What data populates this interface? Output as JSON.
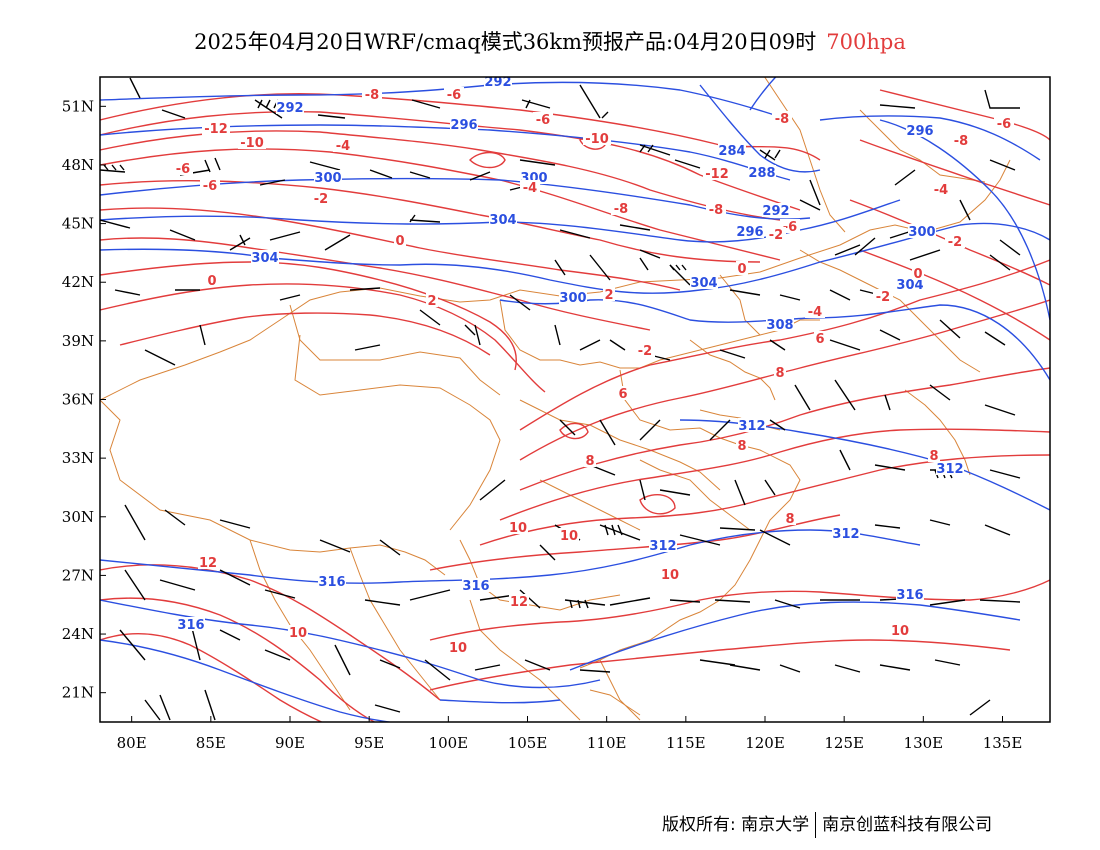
{
  "header": {
    "title": "2025年04月20日WRF/cmaq模式36km预报产品:04月20日09时",
    "level": "700hpa"
  },
  "colors": {
    "temperature": "#e23c3c",
    "height": "#2b4fe0",
    "border": "#d9853a",
    "wind": "#000000",
    "level_label": "#e23c3c"
  },
  "map": {
    "lon_range": [
      78,
      138
    ],
    "lat_range": [
      19.5,
      52.5
    ],
    "lon_ticks": [
      "80E",
      "85E",
      "90E",
      "95E",
      "100E",
      "105E",
      "110E",
      "115E",
      "120E",
      "125E",
      "130E",
      "135E"
    ],
    "lat_ticks": [
      "51N",
      "48N",
      "45N",
      "42N",
      "39N",
      "36N",
      "33N",
      "30N",
      "27N",
      "24N",
      "21N"
    ],
    "height_contours": {
      "name": "geopotential height (dagpm)",
      "labels": [
        "292",
        "292",
        "296",
        "284",
        "288",
        "300",
        "300",
        "292",
        "296",
        "296",
        "300",
        "304",
        "304",
        "304",
        "300",
        "304",
        "308",
        "312",
        "312",
        "312",
        "312",
        "316",
        "316",
        "316",
        "316"
      ]
    },
    "temperature_contours": {
      "name": "temperature (°C)",
      "labels": [
        "-8",
        "-6",
        "-6",
        "-8",
        "-12",
        "-10",
        "-6",
        "-4",
        "-6",
        "-8",
        "-10",
        "-12",
        "-8",
        "-6",
        "-2",
        "-4",
        "-4",
        "-2",
        "-6",
        "-8",
        "-2",
        "0",
        "0",
        "0",
        "2",
        "-2",
        "2",
        "0",
        "-2",
        "-4",
        "6",
        "6",
        "8",
        "8",
        "8",
        "8",
        "10",
        "10",
        "12",
        "12",
        "10",
        "10",
        "10",
        "8",
        "10"
      ]
    }
  },
  "footer": {
    "copyright": "版权所有: 南京大学",
    "company": "南京创蓝科技有限公司"
  }
}
